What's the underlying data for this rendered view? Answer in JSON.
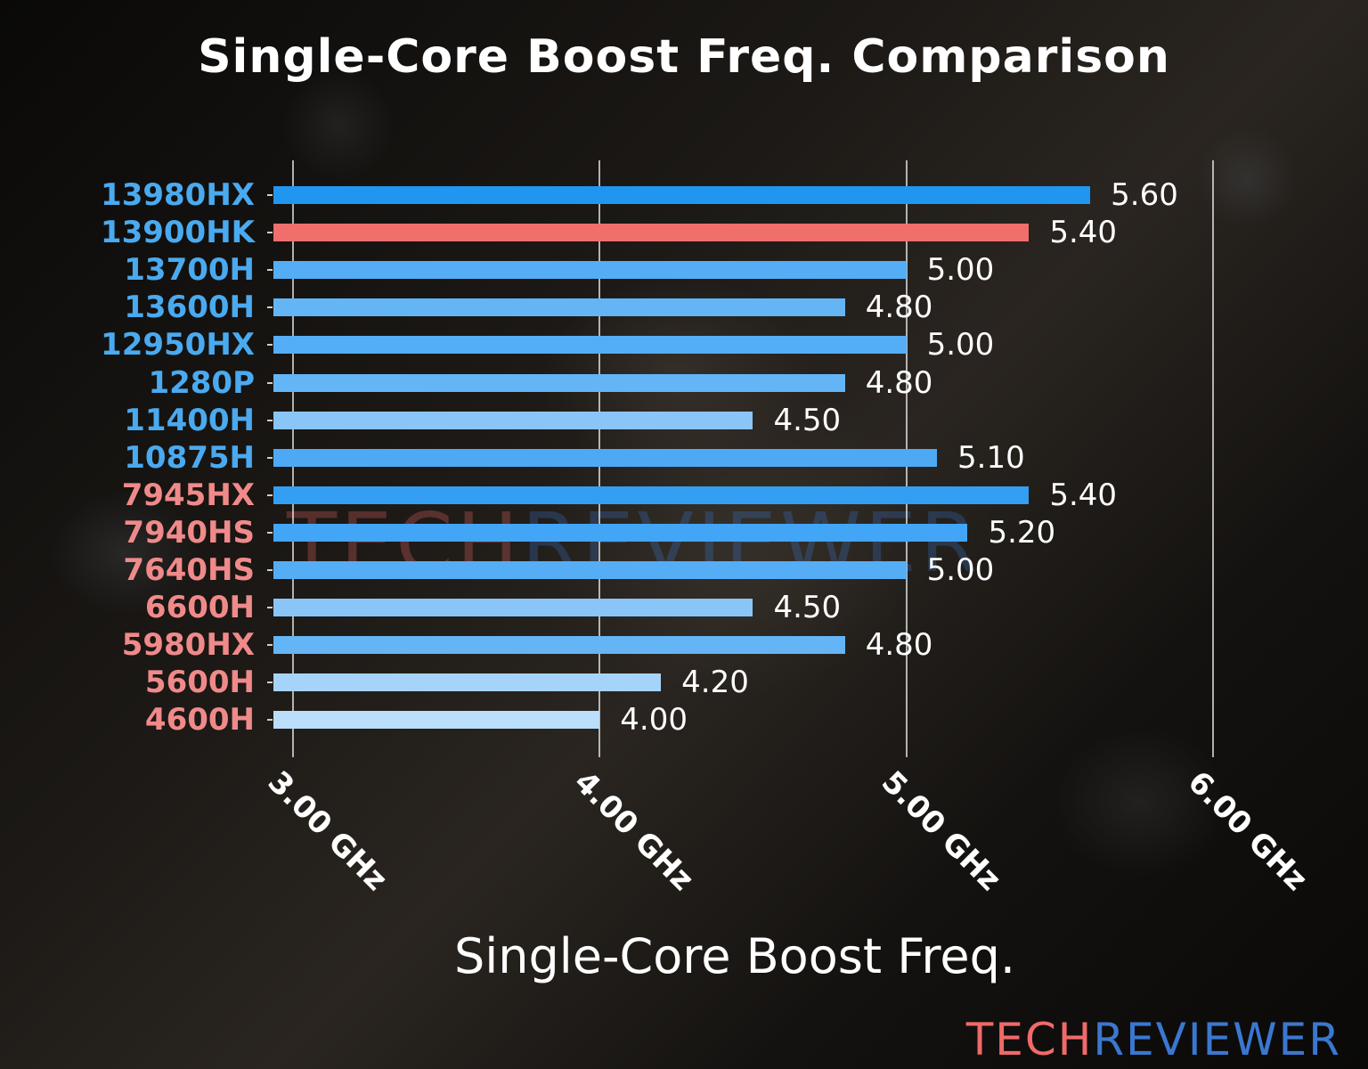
{
  "title": "Single-Core Boost Freq. Comparison",
  "xlabel": "Single-Core Boost Freq.",
  "watermark": {
    "part1": "TECH",
    "part2": "REVIEWER"
  },
  "brand": {
    "part1": "TECH",
    "part2": "REVIEWER",
    "color1": "#f06a6a",
    "color2": "#3a78d0"
  },
  "x_ticks": [
    {
      "label": "3.00 GHz",
      "value": 3.0
    },
    {
      "label": "4.00 GHz",
      "value": 4.0
    },
    {
      "label": "5.00 GHz",
      "value": 5.0
    },
    {
      "label": "6.00 GHz",
      "value": 6.0
    }
  ],
  "rows": [
    {
      "label": "13980HX",
      "value": "5.60",
      "label_color": "#4aaaf0",
      "bar_color": "#2196f0"
    },
    {
      "label": "13900HK",
      "value": "5.40",
      "label_color": "#4aaaf0",
      "bar_color": "#f06e6c"
    },
    {
      "label": "13700H",
      "value": "5.00",
      "label_color": "#4aaaf0",
      "bar_color": "#55adf5"
    },
    {
      "label": "13600H",
      "value": "4.80",
      "label_color": "#4aaaf0",
      "bar_color": "#64b5f6"
    },
    {
      "label": "12950HX",
      "value": "5.00",
      "label_color": "#4aaaf0",
      "bar_color": "#55adf5"
    },
    {
      "label": "1280P",
      "value": "4.80",
      "label_color": "#4aaaf0",
      "bar_color": "#64b5f6"
    },
    {
      "label": "11400H",
      "value": "4.50",
      "label_color": "#4aaaf0",
      "bar_color": "#8ac5f8"
    },
    {
      "label": "10875H",
      "value": "5.10",
      "label_color": "#4aaaf0",
      "bar_color": "#4ea9f4"
    },
    {
      "label": "7945HX",
      "value": "5.40",
      "label_color": "#f08a8a",
      "bar_color": "#349ef2"
    },
    {
      "label": "7940HS",
      "value": "5.20",
      "label_color": "#f08a8a",
      "bar_color": "#42a5f5"
    },
    {
      "label": "7640HS",
      "value": "5.00",
      "label_color": "#f08a8a",
      "bar_color": "#55adf5"
    },
    {
      "label": "6600H",
      "value": "4.50",
      "label_color": "#f08a8a",
      "bar_color": "#8ac5f8"
    },
    {
      "label": "5980HX",
      "value": "4.80",
      "label_color": "#f08a8a",
      "bar_color": "#64b5f6"
    },
    {
      "label": "5600H",
      "value": "4.20",
      "label_color": "#f08a8a",
      "bar_color": "#a6d3fa"
    },
    {
      "label": "4600H",
      "value": "4.00",
      "label_color": "#f08a8a",
      "bar_color": "#bbdefb"
    }
  ],
  "chart_data": {
    "type": "bar",
    "orientation": "horizontal",
    "title": "Single-Core Boost Freq. Comparison",
    "xlabel": "Single-Core Boost Freq.",
    "ylabel": "",
    "categories": [
      "13980HX",
      "13900HK",
      "13700H",
      "13600H",
      "12950HX",
      "1280P",
      "11400H",
      "10875H",
      "7945HX",
      "7940HS",
      "7640HS",
      "6600H",
      "5980HX",
      "5600H",
      "4600H"
    ],
    "values": [
      5.6,
      5.4,
      5.0,
      4.8,
      5.0,
      4.8,
      4.5,
      5.1,
      5.4,
      5.2,
      5.0,
      4.5,
      4.8,
      4.2,
      4.0
    ],
    "units": "GHz",
    "xlim": [
      2.94,
      6.0
    ],
    "x_ticks": [
      "3.00 GHz",
      "4.00 GHz",
      "5.00 GHz",
      "6.00 GHz"
    ],
    "grid": "vertical lines at ticks",
    "legend": "none",
    "category_groups": {
      "Intel (blue labels)": [
        "13980HX",
        "13900HK",
        "13700H",
        "13600H",
        "12950HX",
        "1280P",
        "11400H",
        "10875H"
      ],
      "AMD (red labels)": [
        "7945HX",
        "7940HS",
        "7640HS",
        "6600H",
        "5980HX",
        "5600H",
        "4600H"
      ]
    },
    "highlighted": "13900HK"
  }
}
